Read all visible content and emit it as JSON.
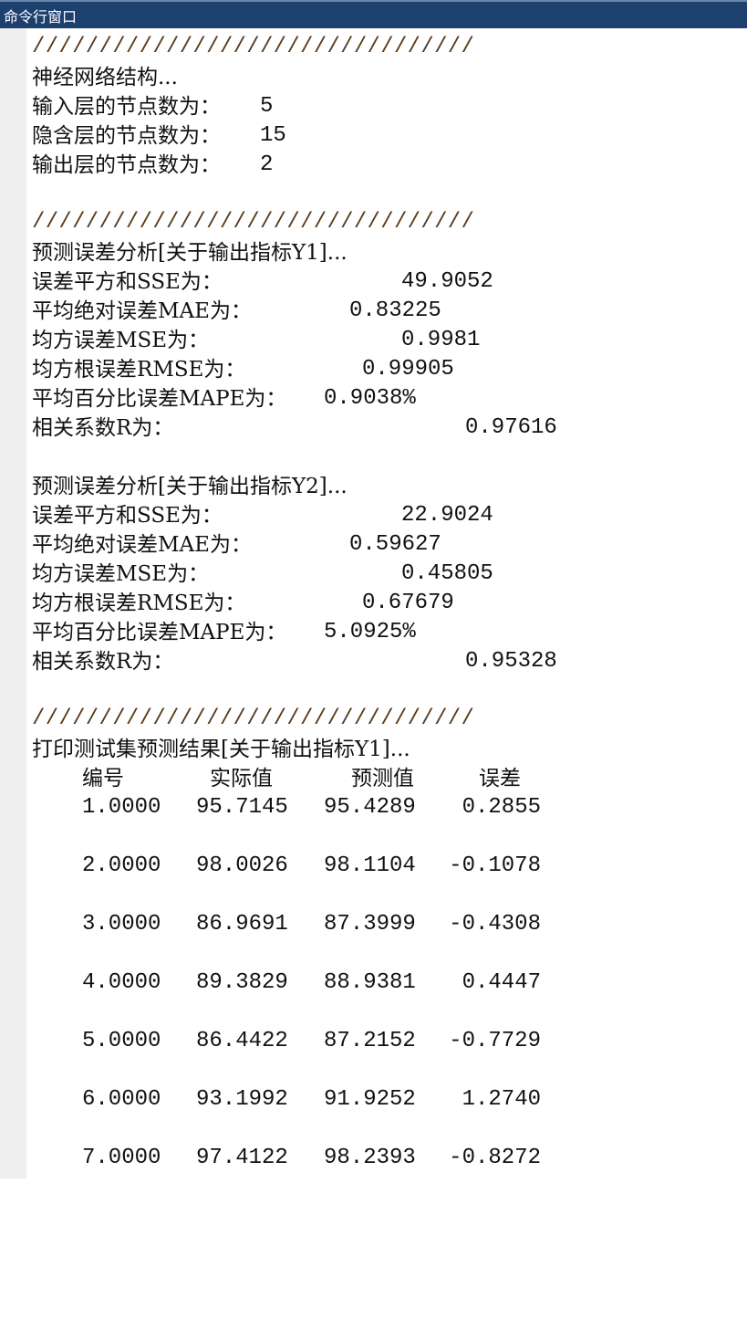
{
  "window": {
    "title": "命令行窗口"
  },
  "separator": "/////////////////////////////////",
  "structure": {
    "heading": "神经网络结构...",
    "input_label": "输入层的节点数为：",
    "input_value": "5",
    "hidden_label": "隐含层的节点数为：",
    "hidden_value": "15",
    "output_label": "输出层的节点数为：",
    "output_value": "2"
  },
  "analysis": [
    {
      "heading": "预测误差分析[关于输出指标Y1]...",
      "sse_label": "误差平方和SSE为：",
      "sse": "49.9052",
      "mae_label": "平均绝对误差MAE为：",
      "mae": "0.83225",
      "mse_label": "均方误差MSE为：",
      "mse": "0.9981",
      "rmse_label": "均方根误差RMSE为：",
      "rmse": "0.99905",
      "mape_label": "平均百分比误差MAPE为：",
      "mape": "0.9038%",
      "r_label": "相关系数R为：",
      "r": "0.97616"
    },
    {
      "heading": "预测误差分析[关于输出指标Y2]...",
      "sse_label": "误差平方和SSE为：",
      "sse": "22.9024",
      "mae_label": "平均绝对误差MAE为：",
      "mae": "0.59627",
      "mse_label": "均方误差MSE为：",
      "mse": "0.45805",
      "rmse_label": "均方根误差RMSE为：",
      "rmse": "0.67679",
      "mape_label": "平均百分比误差MAPE为：",
      "mape": "5.0925%",
      "r_label": "相关系数R为：",
      "r": "0.95328"
    }
  ],
  "results": {
    "heading": "打印测试集预测结果[关于输出指标Y1]...",
    "columns": [
      "编号",
      "实际值",
      "预测值",
      "误差"
    ],
    "rows": [
      [
        "1.0000",
        "95.7145",
        "95.4289",
        "0.2855"
      ],
      [
        "2.0000",
        "98.0026",
        "98.1104",
        "-0.1078"
      ],
      [
        "3.0000",
        "86.9691",
        "87.3999",
        "-0.4308"
      ],
      [
        "4.0000",
        "89.3829",
        "88.9381",
        "0.4447"
      ],
      [
        "5.0000",
        "86.4422",
        "87.2152",
        "-0.7729"
      ],
      [
        "6.0000",
        "93.1992",
        "91.9252",
        "1.2740"
      ],
      [
        "7.0000",
        "97.4122",
        "98.2393",
        "-0.8272"
      ]
    ]
  }
}
